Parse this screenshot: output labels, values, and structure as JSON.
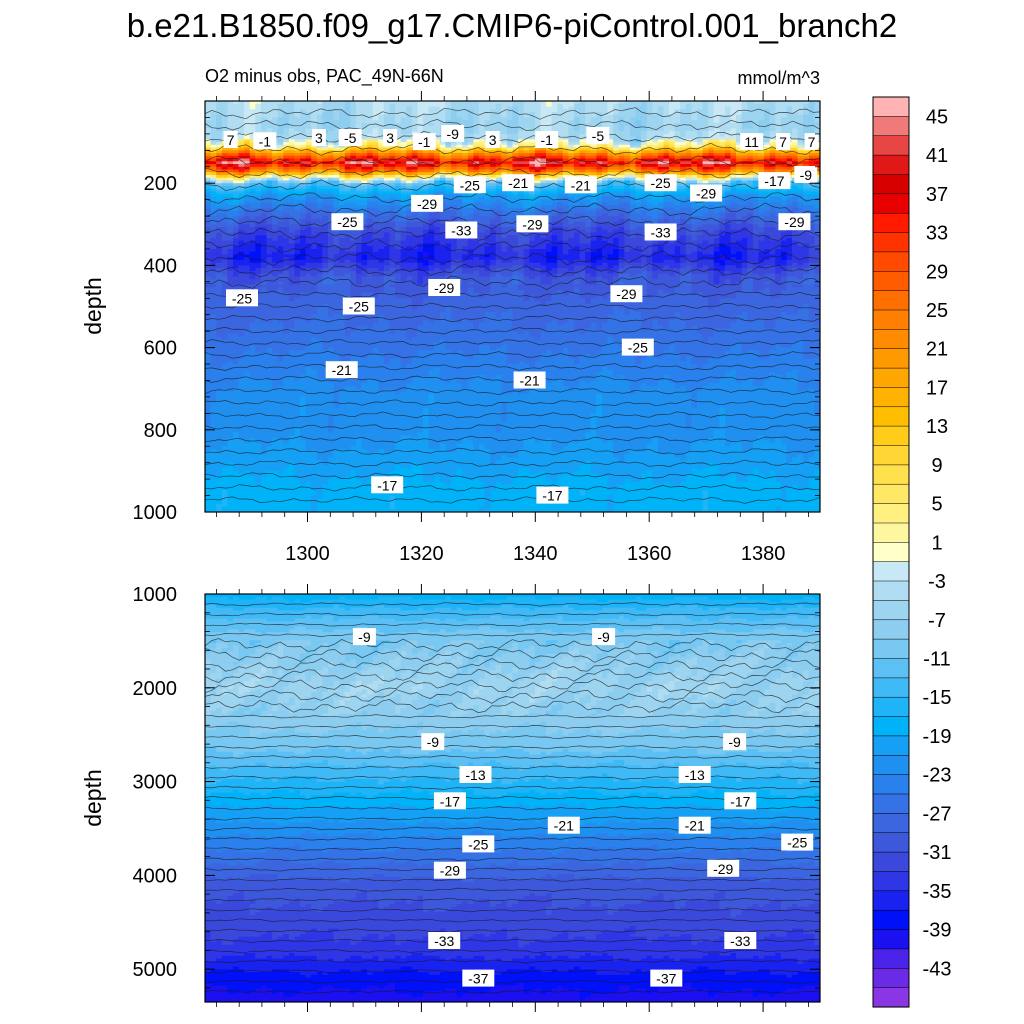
{
  "title": "b.e21.B1850.f09_g17.CMIP6-piControl.001_branch2",
  "chart_data": [
    {
      "type": "heatmap",
      "panel": "top",
      "subtitle_left": "O2 minus obs, PAC_49N-66N",
      "subtitle_right": "mmol/m^3",
      "ylabel": "depth",
      "xlim": [
        1282,
        1390
      ],
      "ylim": [
        1000,
        0
      ],
      "xticks": [
        "1300",
        "1320",
        "1340",
        "1360",
        "1380"
      ],
      "xtick_values": [
        1300,
        1320,
        1340,
        1360,
        1380
      ],
      "yticks": [
        "200",
        "400",
        "600",
        "800",
        "1000"
      ],
      "ytick_values": [
        200,
        400,
        600,
        800,
        1000
      ],
      "profile": {
        "depth": [
          0,
          60,
          90,
          110,
          130,
          150,
          170,
          185,
          200,
          230,
          270,
          320,
          380,
          430,
          500,
          580,
          650,
          720,
          800,
          880,
          950,
          1000
        ],
        "value": [
          -3,
          -5,
          -3,
          5,
          25,
          41,
          25,
          5,
          -11,
          -19,
          -25,
          -31,
          -35,
          -29,
          -27,
          -25,
          -23,
          -21,
          -21,
          -19,
          -17,
          -17
        ]
      },
      "contour_labels": [
        {
          "text": "7",
          "x": 1286.5,
          "y": 95
        },
        {
          "text": "-1",
          "x": 1292.5,
          "y": 98
        },
        {
          "text": "3",
          "x": 1302,
          "y": 90
        },
        {
          "text": "-5",
          "x": 1307.5,
          "y": 90
        },
        {
          "text": "3",
          "x": 1314.5,
          "y": 90
        },
        {
          "text": "-1",
          "x": 1320.5,
          "y": 100
        },
        {
          "text": "-9",
          "x": 1325.5,
          "y": 80
        },
        {
          "text": "3",
          "x": 1332.5,
          "y": 95
        },
        {
          "text": "-1",
          "x": 1342,
          "y": 95
        },
        {
          "text": "-5",
          "x": 1351,
          "y": 85
        },
        {
          "text": "11",
          "x": 1378,
          "y": 100
        },
        {
          "text": "7",
          "x": 1383.5,
          "y": 100
        },
        {
          "text": "7",
          "x": 1388.5,
          "y": 100
        },
        {
          "text": "-25",
          "x": 1328.5,
          "y": 205
        },
        {
          "text": "-21",
          "x": 1337,
          "y": 200
        },
        {
          "text": "-21",
          "x": 1348,
          "y": 205
        },
        {
          "text": "-25",
          "x": 1362,
          "y": 200
        },
        {
          "text": "-29",
          "x": 1370,
          "y": 225
        },
        {
          "text": "-17",
          "x": 1382,
          "y": 195
        },
        {
          "text": "-9",
          "x": 1387.5,
          "y": 180
        },
        {
          "text": "-29",
          "x": 1321,
          "y": 250
        },
        {
          "text": "-25",
          "x": 1307,
          "y": 295
        },
        {
          "text": "-33",
          "x": 1327,
          "y": 315
        },
        {
          "text": "-29",
          "x": 1339.5,
          "y": 300
        },
        {
          "text": "-33",
          "x": 1362,
          "y": 320
        },
        {
          "text": "-29",
          "x": 1385.5,
          "y": 295
        },
        {
          "text": "-25",
          "x": 1288.5,
          "y": 480
        },
        {
          "text": "-25",
          "x": 1309,
          "y": 500
        },
        {
          "text": "-29",
          "x": 1324,
          "y": 455
        },
        {
          "text": "-29",
          "x": 1356,
          "y": 470
        },
        {
          "text": "-25",
          "x": 1358,
          "y": 600
        },
        {
          "text": "-21",
          "x": 1306,
          "y": 655
        },
        {
          "text": "-21",
          "x": 1339,
          "y": 680
        },
        {
          "text": "-17",
          "x": 1314,
          "y": 935
        },
        {
          "text": "-17",
          "x": 1343,
          "y": 960
        }
      ]
    },
    {
      "type": "heatmap",
      "panel": "bottom",
      "ylabel": "depth",
      "xlim": [
        1282,
        1390
      ],
      "ylim": [
        5350,
        1000
      ],
      "yticks": [
        "1000",
        "2000",
        "3000",
        "4000",
        "5000"
      ],
      "ytick_values": [
        1000,
        2000,
        3000,
        4000,
        5000
      ],
      "profile": {
        "depth": [
          1000,
          1200,
          1450,
          1700,
          2000,
          2300,
          2600,
          2900,
          3200,
          3500,
          3800,
          4100,
          4500,
          4800,
          5100,
          5350
        ],
        "value": [
          -17,
          -13,
          -9,
          -7,
          -5,
          -7,
          -9,
          -13,
          -17,
          -21,
          -25,
          -29,
          -31,
          -33,
          -37,
          -39
        ]
      },
      "contour_labels": [
        {
          "text": "-9",
          "x": 1310,
          "y": 1460
        },
        {
          "text": "-9",
          "x": 1352,
          "y": 1460
        },
        {
          "text": "-9",
          "x": 1322,
          "y": 2580
        },
        {
          "text": "-9",
          "x": 1375,
          "y": 2580
        },
        {
          "text": "-13",
          "x": 1329.5,
          "y": 2930
        },
        {
          "text": "-13",
          "x": 1368,
          "y": 2930
        },
        {
          "text": "-17",
          "x": 1325,
          "y": 3210
        },
        {
          "text": "-17",
          "x": 1376,
          "y": 3210
        },
        {
          "text": "-21",
          "x": 1345,
          "y": 3470
        },
        {
          "text": "-21",
          "x": 1368,
          "y": 3470
        },
        {
          "text": "-25",
          "x": 1330,
          "y": 3670
        },
        {
          "text": "-25",
          "x": 1386,
          "y": 3650
        },
        {
          "text": "-29",
          "x": 1325,
          "y": 3950
        },
        {
          "text": "-29",
          "x": 1373,
          "y": 3930
        },
        {
          "text": "-33",
          "x": 1324,
          "y": 4700
        },
        {
          "text": "-33",
          "x": 1376,
          "y": 4700
        },
        {
          "text": "-37",
          "x": 1330,
          "y": 5100
        },
        {
          "text": "-37",
          "x": 1363,
          "y": 5100
        }
      ]
    },
    {
      "type": "colorbar",
      "labels": [
        "45",
        "41",
        "37",
        "33",
        "29",
        "25",
        "21",
        "17",
        "13",
        "9",
        "5",
        "1",
        "-3",
        "-7",
        "-11",
        "-15",
        "-19",
        "-23",
        "-27",
        "-31",
        "-35",
        "-39",
        "-43"
      ],
      "bins": [
        {
          "v": 47,
          "color": "#ffb3b3"
        },
        {
          "v": 45,
          "color": "#f07a7a"
        },
        {
          "v": 43,
          "color": "#e84545"
        },
        {
          "v": 41,
          "color": "#e01818"
        },
        {
          "v": 39,
          "color": "#d60000"
        },
        {
          "v": 37,
          "color": "#e80000"
        },
        {
          "v": 35,
          "color": "#ff1a00"
        },
        {
          "v": 33,
          "color": "#ff3300"
        },
        {
          "v": 31,
          "color": "#ff4a00"
        },
        {
          "v": 29,
          "color": "#ff5c00"
        },
        {
          "v": 27,
          "color": "#ff6e00"
        },
        {
          "v": 25,
          "color": "#ff7f00"
        },
        {
          "v": 23,
          "color": "#ff8c00"
        },
        {
          "v": 21,
          "color": "#ff9900"
        },
        {
          "v": 19,
          "color": "#ffa600"
        },
        {
          "v": 17,
          "color": "#ffb300"
        },
        {
          "v": 15,
          "color": "#ffbf00"
        },
        {
          "v": 13,
          "color": "#ffcc1a"
        },
        {
          "v": 11,
          "color": "#ffd633"
        },
        {
          "v": 9,
          "color": "#ffe04d"
        },
        {
          "v": 7,
          "color": "#ffe866"
        },
        {
          "v": 5,
          "color": "#fff080"
        },
        {
          "v": 3,
          "color": "#fff7a0"
        },
        {
          "v": 1,
          "color": "#ffffc8"
        },
        {
          "v": -1,
          "color": "#c8e8f5"
        },
        {
          "v": -3,
          "color": "#b0ddf2"
        },
        {
          "v": -5,
          "color": "#9dd4f0"
        },
        {
          "v": -7,
          "color": "#8ccdf0"
        },
        {
          "v": -9,
          "color": "#78c8f2"
        },
        {
          "v": -11,
          "color": "#5cc0f5"
        },
        {
          "v": -13,
          "color": "#40baf7"
        },
        {
          "v": -15,
          "color": "#1fb4f7"
        },
        {
          "v": -17,
          "color": "#00b2f7"
        },
        {
          "v": -19,
          "color": "#15a0f5"
        },
        {
          "v": -21,
          "color": "#2090f0"
        },
        {
          "v": -23,
          "color": "#2a80ec"
        },
        {
          "v": -25,
          "color": "#3472e6"
        },
        {
          "v": -27,
          "color": "#3c66e0"
        },
        {
          "v": -29,
          "color": "#3e58dc"
        },
        {
          "v": -31,
          "color": "#3a48dc"
        },
        {
          "v": -33,
          "color": "#2e36e6"
        },
        {
          "v": -35,
          "color": "#1a22f0"
        },
        {
          "v": -37,
          "color": "#0010f8"
        },
        {
          "v": -39,
          "color": "#1a10f0"
        },
        {
          "v": -41,
          "color": "#4a22e8"
        },
        {
          "v": -43,
          "color": "#6a2ae6"
        },
        {
          "v": -45,
          "color": "#8a36e4"
        }
      ]
    }
  ]
}
